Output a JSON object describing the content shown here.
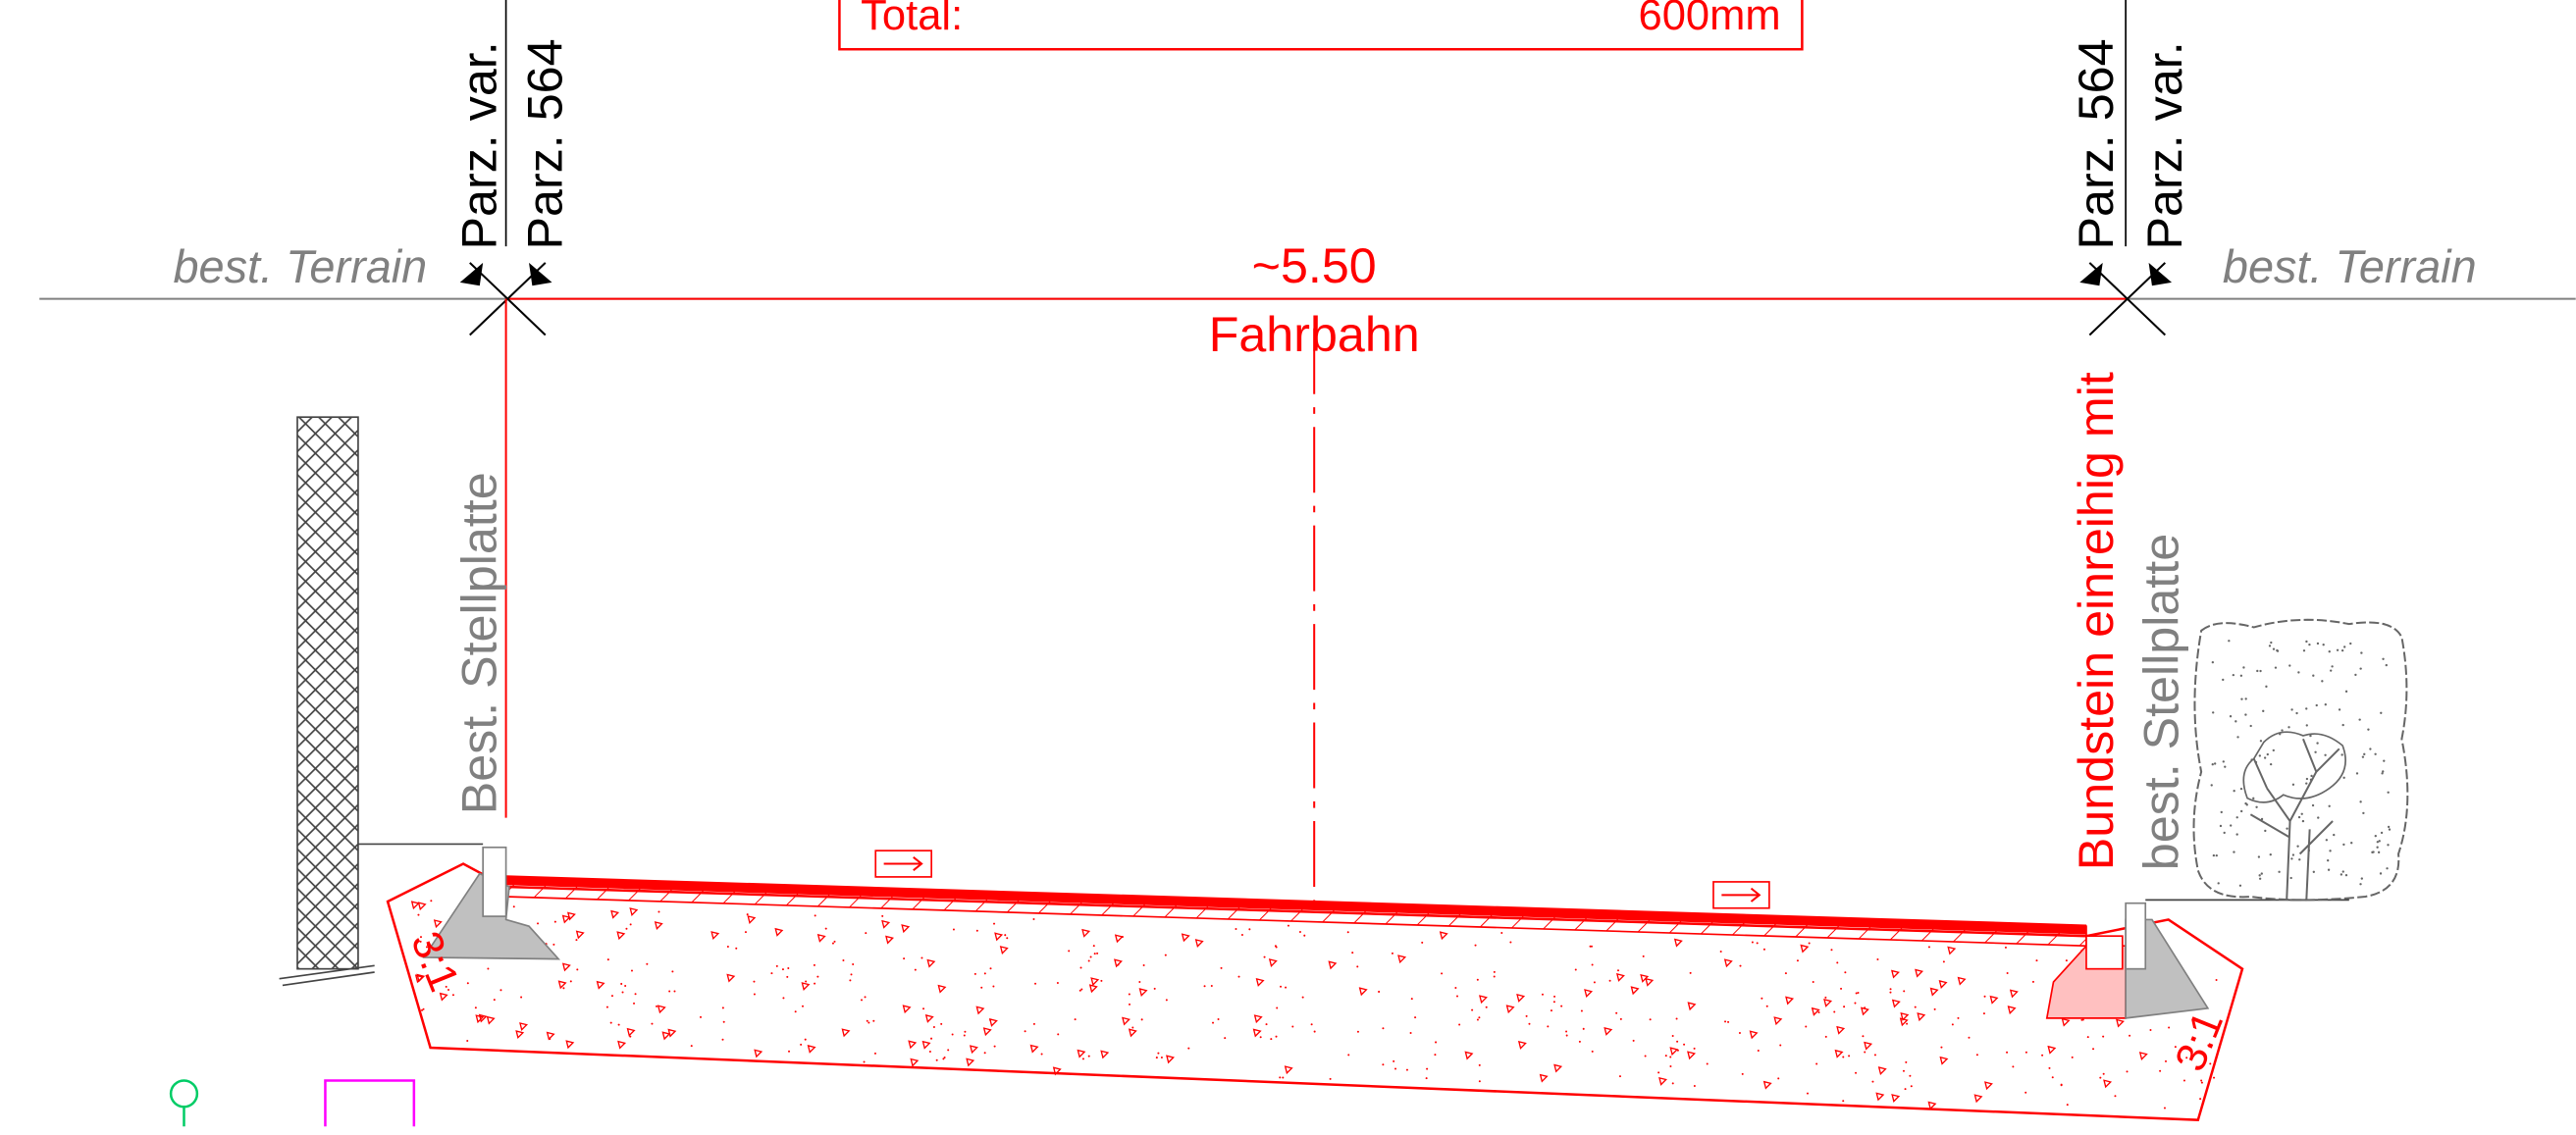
{
  "title_box": {
    "label": "Total:",
    "value": "600mm"
  },
  "terrain": {
    "left": "best. Terrain",
    "right": "best. Terrain"
  },
  "parcels": {
    "left_outer": "Parz. var.",
    "left_inner": "Parz. 564",
    "right_inner": "Parz. 564",
    "right_outer": "Parz. var."
  },
  "roadway": {
    "width": "~5.50",
    "label": "Fahrbahn"
  },
  "left_side": {
    "label": "Best. Stellplatte",
    "slope": "3:1"
  },
  "right_side": {
    "curb_label": "Bundstein einreihig mit",
    "label": "best. Stellplatte",
    "slope": "3:1"
  },
  "colors": {
    "annotation": "#ff0000",
    "existing": "#808080",
    "linework": "#000000",
    "symbol_green": "#00cc66",
    "symbol_magenta": "#ff00ff"
  },
  "icons": [
    "flow-arrow-icon",
    "tree-icon",
    "north-marker-icon"
  ]
}
